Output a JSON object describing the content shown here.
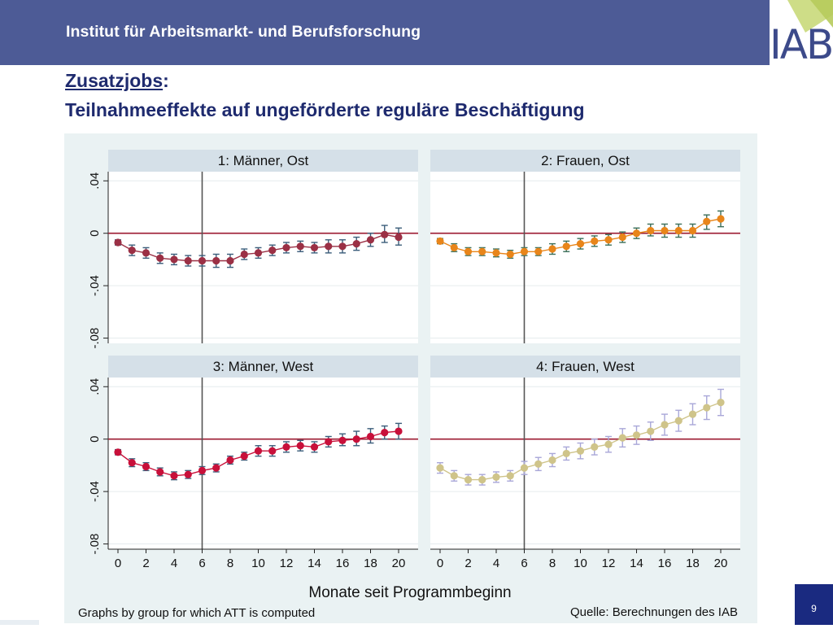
{
  "header": {
    "banner_title": "Institut für Arbeitsmarkt- und Berufsforschung",
    "logo_text": "IAB"
  },
  "slide": {
    "title_link": "Zusatzjobs",
    "title_colon": ":",
    "subtitle": "Teilnahmeeffekte auf ungeförderte reguläre Beschäftigung",
    "page_number": "9"
  },
  "figure": {
    "xlabel": "Monate seit Programmbeginn",
    "note_left": "Graphs by group for which ATT is computed",
    "note_right": "Quelle: Berechnungen des IAB"
  },
  "colors": {
    "banner": "#4d5b96",
    "title": "#1e2a6e",
    "plot_background": "#eaf2f3",
    "zero_line": "#9c1a30",
    "group1": "#9b3045",
    "group2": "#e8851a",
    "group3": "#c8103a",
    "group4": "#cfc48a",
    "ci_group1": "#3b5d7a",
    "ci_group2": "#3b6f5a",
    "ci_group3": "#3b5d7a",
    "ci_group4": "#a9a7d8"
  },
  "chart_data": {
    "type": "scatter",
    "subtype": "point estimates with confidence intervals, small multiples",
    "x": [
      0,
      1,
      2,
      3,
      4,
      5,
      6,
      7,
      8,
      9,
      10,
      11,
      12,
      13,
      14,
      15,
      16,
      17,
      18,
      19,
      20
    ],
    "x_ticks": [
      "0",
      "2",
      "4",
      "6",
      "8",
      "10",
      "12",
      "14",
      "16",
      "18",
      "20"
    ],
    "xlabel": "Monate seit Programmbeginn",
    "y_ticks": [
      "-.08",
      "-.04",
      "0",
      ".04"
    ],
    "ylim": [
      -0.084,
      0.047
    ],
    "reference_x": 6,
    "reference_y": 0,
    "grid": true,
    "panels": [
      {
        "name": "1: Männer, Ost",
        "values": [
          -0.007,
          -0.013,
          -0.015,
          -0.019,
          -0.02,
          -0.021,
          -0.021,
          -0.021,
          -0.021,
          -0.016,
          -0.015,
          -0.013,
          -0.011,
          -0.01,
          -0.011,
          -0.01,
          -0.01,
          -0.008,
          -0.005,
          -0.001,
          -0.003
        ],
        "ci_low": [
          -0.009,
          -0.017,
          -0.019,
          -0.023,
          -0.024,
          -0.025,
          -0.025,
          -0.026,
          -0.026,
          -0.02,
          -0.019,
          -0.017,
          -0.015,
          -0.014,
          -0.015,
          -0.015,
          -0.015,
          -0.013,
          -0.01,
          -0.007,
          -0.009
        ],
        "ci_high": [
          -0.005,
          -0.009,
          -0.011,
          -0.015,
          -0.016,
          -0.017,
          -0.017,
          -0.016,
          -0.016,
          -0.012,
          -0.011,
          -0.009,
          -0.007,
          -0.006,
          -0.007,
          -0.005,
          -0.005,
          -0.003,
          0.0,
          0.006,
          0.004
        ]
      },
      {
        "name": "2: Frauen, Ost",
        "values": [
          -0.006,
          -0.011,
          -0.014,
          -0.014,
          -0.015,
          -0.016,
          -0.014,
          -0.014,
          -0.012,
          -0.01,
          -0.008,
          -0.006,
          -0.005,
          -0.003,
          0.0,
          0.002,
          0.002,
          0.002,
          0.002,
          0.009,
          0.011
        ],
        "ci_low": [
          -0.008,
          -0.014,
          -0.017,
          -0.017,
          -0.018,
          -0.019,
          -0.017,
          -0.017,
          -0.016,
          -0.014,
          -0.012,
          -0.01,
          -0.009,
          -0.007,
          -0.004,
          -0.002,
          -0.003,
          -0.003,
          -0.003,
          0.003,
          0.005
        ],
        "ci_high": [
          -0.004,
          -0.008,
          -0.011,
          -0.011,
          -0.012,
          -0.013,
          -0.011,
          -0.011,
          -0.008,
          -0.006,
          -0.004,
          -0.002,
          -0.001,
          0.001,
          0.004,
          0.007,
          0.007,
          0.007,
          0.007,
          0.014,
          0.017
        ]
      },
      {
        "name": "3: Männer, West",
        "values": [
          -0.01,
          -0.018,
          -0.021,
          -0.025,
          -0.028,
          -0.027,
          -0.024,
          -0.022,
          -0.016,
          -0.013,
          -0.009,
          -0.009,
          -0.006,
          -0.005,
          -0.006,
          -0.002,
          -0.001,
          0.0,
          0.002,
          0.005,
          0.006
        ],
        "ci_low": [
          -0.012,
          -0.021,
          -0.024,
          -0.028,
          -0.031,
          -0.03,
          -0.027,
          -0.025,
          -0.019,
          -0.016,
          -0.013,
          -0.013,
          -0.01,
          -0.009,
          -0.01,
          -0.006,
          -0.005,
          -0.005,
          -0.003,
          0.0,
          0.0
        ],
        "ci_high": [
          -0.008,
          -0.015,
          -0.018,
          -0.022,
          -0.025,
          -0.024,
          -0.021,
          -0.019,
          -0.013,
          -0.01,
          -0.005,
          -0.005,
          -0.002,
          -0.001,
          -0.002,
          0.002,
          0.004,
          0.006,
          0.008,
          0.01,
          0.012
        ]
      },
      {
        "name": "4: Frauen, West",
        "values": [
          -0.022,
          -0.028,
          -0.031,
          -0.031,
          -0.029,
          -0.028,
          -0.022,
          -0.019,
          -0.016,
          -0.011,
          -0.009,
          -0.006,
          -0.004,
          0.001,
          0.003,
          0.006,
          0.011,
          0.014,
          0.019,
          0.024,
          0.028
        ],
        "ci_low": [
          -0.026,
          -0.032,
          -0.035,
          -0.035,
          -0.033,
          -0.032,
          -0.027,
          -0.024,
          -0.021,
          -0.016,
          -0.015,
          -0.012,
          -0.01,
          -0.006,
          -0.004,
          -0.001,
          0.003,
          0.006,
          0.011,
          0.015,
          0.018
        ],
        "ci_high": [
          -0.018,
          -0.024,
          -0.027,
          -0.027,
          -0.025,
          -0.024,
          -0.017,
          -0.014,
          -0.011,
          -0.006,
          -0.003,
          0.0,
          0.002,
          0.008,
          0.01,
          0.013,
          0.019,
          0.022,
          0.027,
          0.033,
          0.038
        ]
      }
    ]
  }
}
